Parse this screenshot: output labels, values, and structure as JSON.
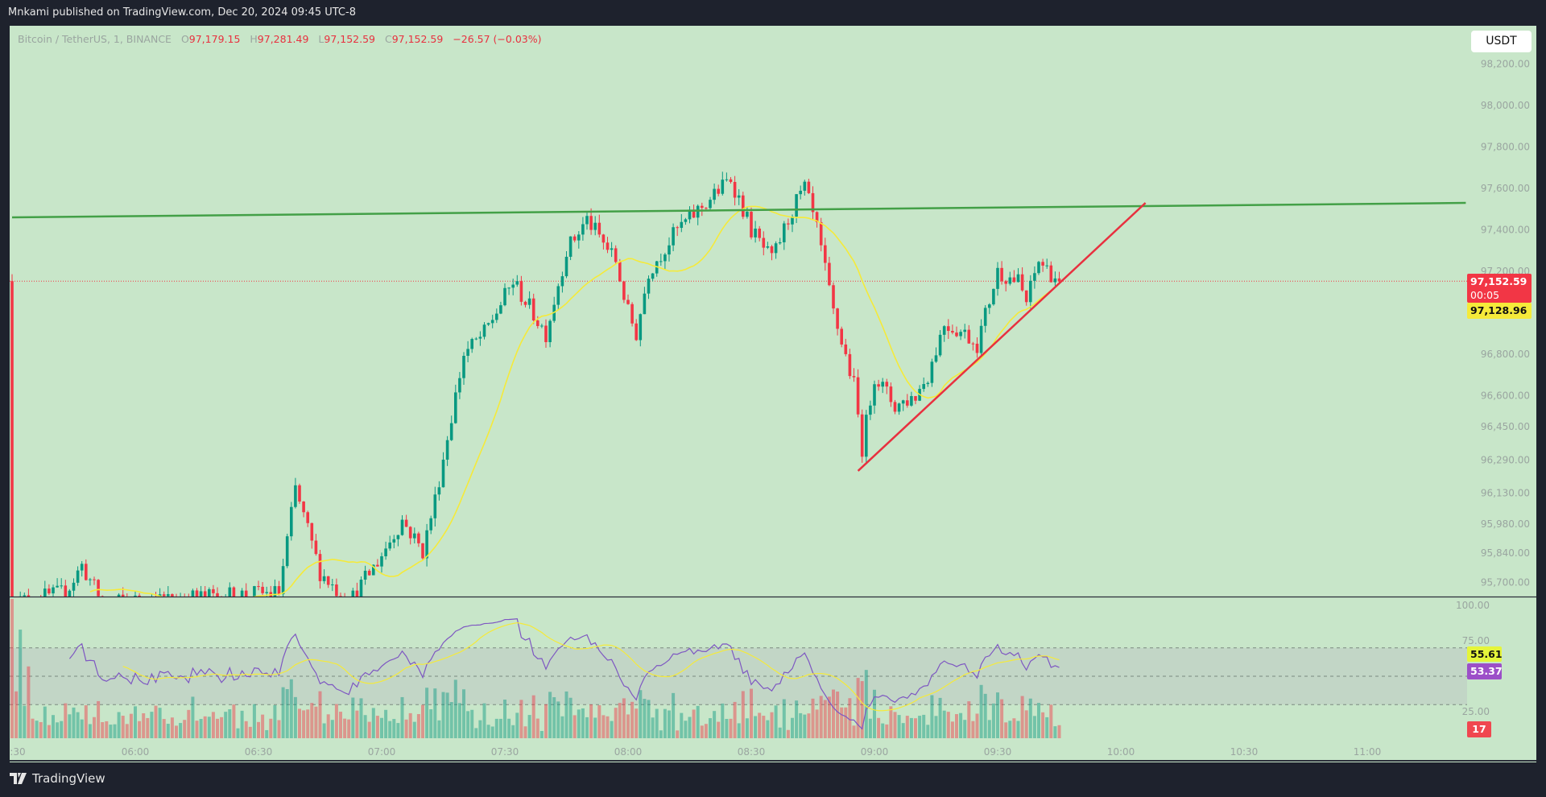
{
  "header": {
    "published": "Mnkami published on TradingView.com, Dec 20, 2024 09:45 UTC-8"
  },
  "legend": {
    "symbol": "Bitcoin / TetherUS, 1, BINANCE",
    "o_label": "O",
    "o": "97,179.15",
    "h_label": "H",
    "h": "97,281.49",
    "l_label": "L",
    "l": "97,152.59",
    "c_label": "C",
    "c": "97,152.59",
    "change": "−26.57 (−0.03%)"
  },
  "currency": "USDT",
  "price_badges": {
    "last": "97,152.59",
    "countdown": "00:05",
    "ma": "97,128.96"
  },
  "rsi_badges": {
    "ma": "55.61",
    "rsi": "53.37",
    "volume": "17"
  },
  "footer": {
    "brand": "TradingView"
  },
  "colors": {
    "up": "#089981",
    "down": "#f23645",
    "bg": "#c8e6c9",
    "ma": "#f5ea3a",
    "rsi": "#7e57c2",
    "resistance": "#43a047",
    "trend": "#e8303f"
  },
  "chart_data": {
    "type": "candlestick",
    "interval_minutes": 1,
    "price_axis": {
      "ticks": [
        "98,200.00",
        "98,000.00",
        "97,800.00",
        "97,600.00",
        "97,400.00",
        "97,200.00",
        "96,800.00",
        "96,600.00",
        "96,450.00",
        "96,290.00",
        "96,130.00",
        "95,980.00",
        "95,840.00",
        "95,700.00"
      ],
      "values": [
        98200,
        98000,
        97800,
        97600,
        97400,
        97200,
        96800,
        96600,
        96450,
        96290,
        96130,
        95980,
        95840,
        95700
      ]
    },
    "rsi_axis": {
      "ticks": [
        "100.00",
        "75.00",
        "25.00"
      ],
      "values": [
        100,
        75,
        25
      ],
      "band": [
        30,
        70
      ]
    },
    "time_axis": {
      "ticks": [
        ":30",
        "06:00",
        "06:30",
        "07:00",
        "07:30",
        "08:00",
        "08:30",
        "09:00",
        "09:30",
        "10:00",
        "10:30",
        "11:00"
      ],
      "minutes_from_0600": [
        -30,
        0,
        30,
        60,
        90,
        120,
        150,
        180,
        210,
        240,
        270,
        300
      ]
    },
    "close_path_minutes_price": [
      [
        -30,
        95600
      ],
      [
        -17,
        95650
      ],
      [
        -13,
        95780
      ],
      [
        -8,
        95600
      ],
      [
        35,
        95650
      ],
      [
        39,
        96150
      ],
      [
        45,
        95750
      ],
      [
        52,
        95600
      ],
      [
        59,
        95800
      ],
      [
        65,
        96000
      ],
      [
        70,
        95850
      ],
      [
        73,
        96100
      ],
      [
        80,
        96800
      ],
      [
        85,
        96900
      ],
      [
        92,
        97150
      ],
      [
        100,
        96900
      ],
      [
        105,
        97300
      ],
      [
        110,
        97450
      ],
      [
        117,
        97250
      ],
      [
        120,
        97000
      ],
      [
        122,
        96900
      ],
      [
        125,
        97200
      ],
      [
        132,
        97400
      ],
      [
        140,
        97550
      ],
      [
        145,
        97650
      ],
      [
        150,
        97400
      ],
      [
        155,
        97250
      ],
      [
        160,
        97500
      ],
      [
        163,
        97600
      ],
      [
        166,
        97400
      ],
      [
        170,
        97000
      ],
      [
        175,
        96650
      ],
      [
        177,
        96350
      ],
      [
        180,
        96700
      ],
      [
        185,
        96550
      ],
      [
        190,
        96600
      ],
      [
        193,
        96700
      ],
      [
        197,
        96950
      ],
      [
        202,
        96900
      ],
      [
        205,
        96850
      ],
      [
        210,
        97200
      ],
      [
        215,
        97150
      ],
      [
        217,
        97050
      ],
      [
        220,
        97250
      ],
      [
        225,
        97152.59
      ]
    ],
    "last_price": 97152.59,
    "ma_period": 20,
    "rsi_period": 14,
    "drawings": [
      {
        "name": "resistance-line",
        "from": [
          -30,
          97460
        ],
        "to": [
          324,
          97530
        ]
      },
      {
        "name": "ascending-trendline",
        "from": [
          176,
          96237
        ],
        "to": [
          246,
          97530
        ]
      }
    ]
  }
}
